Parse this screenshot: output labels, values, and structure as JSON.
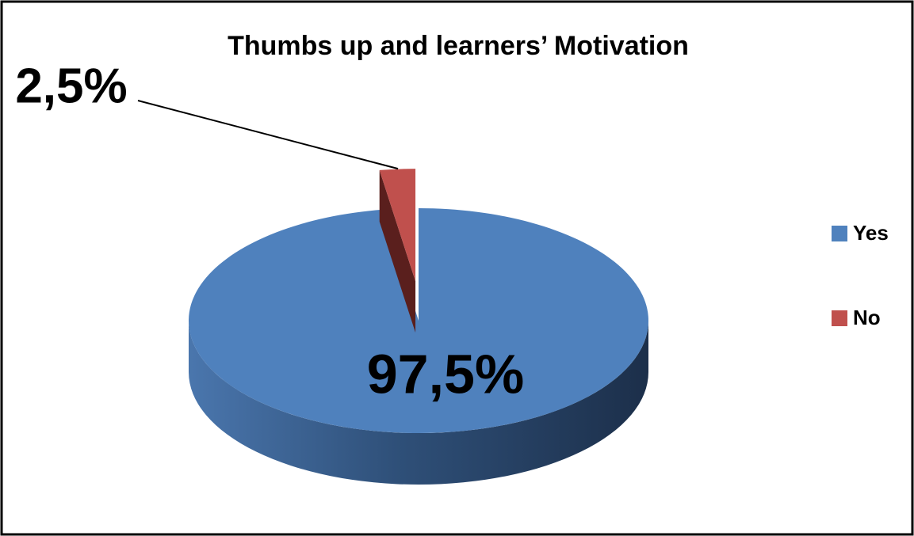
{
  "chart_data": {
    "type": "pie",
    "title": "Thumbs up and  learners’ Motivation",
    "categories": [
      "Yes",
      "No"
    ],
    "values": [
      97.5,
      2.5
    ],
    "value_labels": [
      "97,5%",
      "2,5%"
    ],
    "colors": [
      "#4f81bd",
      "#c0504d"
    ],
    "legend": "right"
  }
}
